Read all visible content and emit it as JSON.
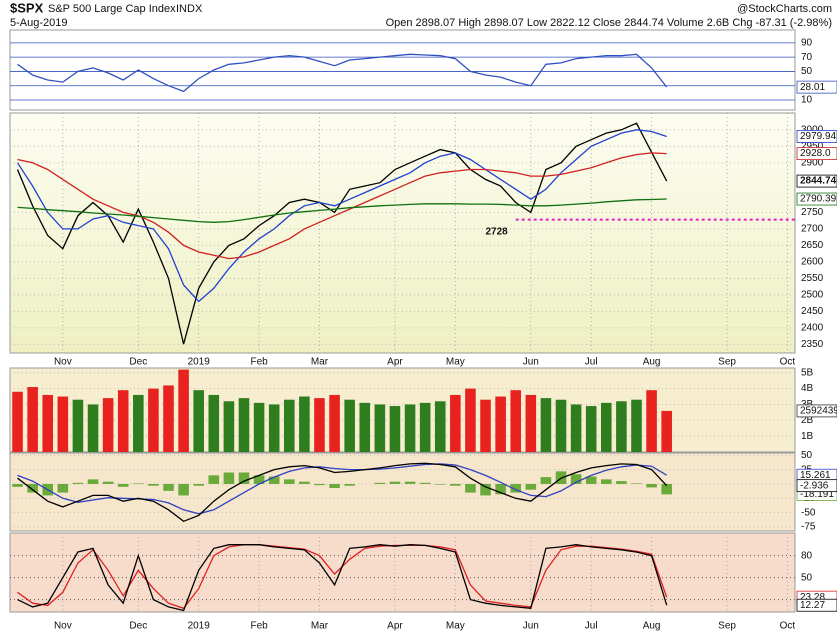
{
  "header": {
    "symbol": "$SPX",
    "name": "S&P 500 Large Cap Index",
    "exchange": "INDX",
    "date": "5-Aug-2019",
    "watermark": "@StockCharts.com",
    "quote": "Open 2898.07  High 2898.07  Low 2822.12  Close 2844.74  Volume 2.6B  Chg -87.31 (-2.98%)"
  },
  "chart_data": [
    {
      "type": "line",
      "categories": [
        null,
        null,
        null,
        null,
        null,
        null,
        null,
        null,
        null,
        null,
        null,
        null,
        null,
        null,
        null,
        null,
        null,
        null,
        null,
        null,
        null,
        null,
        null,
        null,
        null,
        null,
        null,
        null,
        null,
        null,
        null,
        null,
        null,
        null,
        null,
        null,
        null,
        null,
        null,
        null,
        null,
        null,
        null,
        null,
        null,
        null,
        null,
        null,
        null,
        null,
        null,
        null
      ],
      "ylim": [
        -4,
        108
      ],
      "yticks": [
        10,
        30,
        50,
        70,
        90
      ],
      "grid": true,
      "series": [
        {
          "color": "#3050c0",
          "show_last": true,
          "values": [
            60,
            45,
            38,
            35,
            50,
            55,
            48,
            38,
            52,
            40,
            30,
            22,
            40,
            52,
            60,
            62,
            66,
            70,
            72,
            70,
            64,
            58,
            66,
            68,
            70,
            72,
            74,
            73,
            72,
            68,
            50,
            45,
            42,
            35,
            30,
            60,
            62,
            68,
            70,
            72,
            72,
            74,
            55,
            28.01,
            null,
            null,
            null,
            null,
            null,
            null,
            null,
            null
          ]
        }
      ]
    },
    {
      "type": "line",
      "categories": [
        null,
        null,
        null,
        "Nov",
        null,
        null,
        null,
        null,
        "Dec",
        null,
        null,
        null,
        "2019",
        null,
        null,
        null,
        "Feb",
        null,
        null,
        null,
        "Mar",
        null,
        null,
        null,
        null,
        "Apr",
        null,
        null,
        null,
        "May",
        null,
        null,
        null,
        null,
        "Jun",
        null,
        null,
        null,
        "Jul",
        null,
        null,
        null,
        "Aug",
        null,
        null,
        null,
        null,
        "Sep",
        null,
        null,
        null,
        "Oct"
      ],
      "ylim": [
        2324,
        3051
      ],
      "yticks": [
        2350,
        2400,
        2450,
        2500,
        2550,
        2600,
        2650,
        2700,
        2750,
        2900,
        2950,
        3000
      ],
      "grid": true,
      "annotation": {
        "text": "2728",
        "value": 2728,
        "color": "#e020c0"
      },
      "series": [
        {
          "color": "#000000",
          "show_last": true,
          "values": [
            2880,
            2770,
            2680,
            2640,
            2740,
            2780,
            2740,
            2660,
            2760,
            2660,
            2550,
            2351,
            2520,
            2600,
            2650,
            2670,
            2710,
            2740,
            2780,
            2790,
            2780,
            2750,
            2820,
            2830,
            2840,
            2880,
            2900,
            2920,
            2940,
            2930,
            2880,
            2850,
            2830,
            2780,
            2750,
            2880,
            2900,
            2950,
            2970,
            2990,
            3000,
            3020,
            2932,
            2844.74,
            null,
            null,
            null,
            null,
            null,
            null,
            null,
            null
          ]
        },
        {
          "color": "#2040d0",
          "show_last": true,
          "values": [
            2900,
            2830,
            2750,
            2700,
            2700,
            2730,
            2740,
            2720,
            2710,
            2700,
            2640,
            2530,
            2480,
            2520,
            2580,
            2630,
            2670,
            2700,
            2740,
            2770,
            2780,
            2770,
            2790,
            2810,
            2830,
            2850,
            2870,
            2900,
            2920,
            2930,
            2910,
            2880,
            2850,
            2820,
            2790,
            2820,
            2870,
            2910,
            2950,
            2970,
            2990,
            3000,
            2995,
            2979.94,
            null,
            null,
            null,
            null,
            null,
            null,
            null,
            null
          ]
        },
        {
          "color": "#d02020",
          "show_last": true,
          "values": [
            2910,
            2900,
            2880,
            2850,
            2820,
            2790,
            2770,
            2750,
            2740,
            2720,
            2690,
            2650,
            2630,
            2620,
            2610,
            2615,
            2630,
            2650,
            2670,
            2700,
            2720,
            2740,
            2760,
            2780,
            2800,
            2820,
            2840,
            2860,
            2870,
            2875,
            2880,
            2880,
            2875,
            2870,
            2860,
            2860,
            2865,
            2875,
            2885,
            2900,
            2915,
            2925,
            2930,
            2928,
            null,
            null,
            null,
            null,
            null,
            null,
            null,
            null
          ],
          "value_labels": [
            null,
            null,
            null,
            null,
            null,
            null,
            null,
            null,
            null,
            null,
            null,
            null,
            null,
            null,
            null,
            null,
            null,
            null,
            null,
            null,
            null,
            null,
            null,
            null,
            null,
            null,
            null,
            null,
            null,
            null,
            null,
            null,
            null,
            null,
            null,
            null,
            null,
            null,
            null,
            null,
            null,
            null,
            null,
            "2928.0",
            null,
            null,
            null,
            null,
            null,
            null,
            null,
            null
          ]
        },
        {
          "color": "#107010",
          "show_last": true,
          "values": [
            2765,
            2762,
            2758,
            2755,
            2752,
            2748,
            2745,
            2742,
            2738,
            2734,
            2730,
            2726,
            2722,
            2720,
            2722,
            2728,
            2735,
            2742,
            2748,
            2752,
            2756,
            2760,
            2764,
            2767,
            2770,
            2772,
            2774,
            2776,
            2776,
            2776,
            2775,
            2775,
            2774,
            2772,
            2770,
            2770,
            2772,
            2775,
            2778,
            2782,
            2785,
            2788,
            2789,
            2790.39,
            null,
            null,
            null,
            null,
            null,
            null,
            null,
            null
          ]
        }
      ]
    },
    {
      "type": "bar",
      "categories": [
        null,
        null,
        null,
        null,
        null,
        null,
        null,
        null,
        null,
        null,
        null,
        null,
        null,
        null,
        null,
        null,
        null,
        null,
        null,
        null,
        null,
        null,
        null,
        null,
        null,
        null,
        null,
        null,
        null,
        null,
        null,
        null,
        null,
        null,
        null,
        null,
        null,
        null,
        null,
        null,
        null,
        null,
        null,
        null,
        null,
        null,
        null,
        null,
        null,
        null,
        null,
        null
      ],
      "ylim": [
        0,
        5.3
      ],
      "yticks": [
        {
          "value": 1,
          "label": "1B"
        },
        {
          "value": 2,
          "label": "2B"
        },
        {
          "value": 3,
          "label": "3B"
        },
        {
          "value": 4,
          "label": "4B"
        },
        {
          "value": 5,
          "label": "5B"
        }
      ],
      "grid": true,
      "series": [
        {
          "show_last": true,
          "values": [
            3.8,
            4.1,
            3.6,
            3.5,
            3.3,
            3.0,
            3.4,
            3.9,
            3.6,
            4.0,
            4.2,
            5.2,
            3.9,
            3.6,
            3.2,
            3.4,
            3.1,
            3.0,
            3.3,
            3.5,
            3.4,
            3.6,
            3.3,
            3.1,
            3.0,
            2.9,
            3.0,
            3.1,
            3.2,
            3.6,
            4.0,
            3.3,
            3.5,
            3.9,
            3.6,
            3.4,
            3.3,
            3.0,
            2.9,
            3.1,
            3.2,
            3.3,
            3.9,
            2.592439,
            null,
            null,
            null,
            null,
            null,
            null,
            null,
            null
          ],
          "value_labels": [
            null,
            null,
            null,
            null,
            null,
            null,
            null,
            null,
            null,
            null,
            null,
            null,
            null,
            null,
            null,
            null,
            null,
            null,
            null,
            null,
            null,
            null,
            null,
            null,
            null,
            null,
            null,
            null,
            null,
            null,
            null,
            null,
            null,
            null,
            null,
            null,
            null,
            null,
            null,
            null,
            null,
            null,
            null,
            "2592439",
            null,
            null,
            null,
            null,
            null,
            null,
            null,
            null
          ],
          "colors": [
            "#e8231f",
            "#e8231f",
            "#e8231f",
            "#e8231f",
            "#2e7d1f",
            "#2e7d1f",
            "#e8231f",
            "#e8231f",
            "#2e7d1f",
            "#e8231f",
            "#e8231f",
            "#e8231f",
            "#2e7d1f",
            "#2e7d1f",
            "#2e7d1f",
            "#2e7d1f",
            "#2e7d1f",
            "#2e7d1f",
            "#2e7d1f",
            "#2e7d1f",
            "#e8231f",
            "#e8231f",
            "#2e7d1f",
            "#2e7d1f",
            "#2e7d1f",
            "#2e7d1f",
            "#2e7d1f",
            "#2e7d1f",
            "#2e7d1f",
            "#e8231f",
            "#e8231f",
            "#e8231f",
            "#e8231f",
            "#e8231f",
            "#e8231f",
            "#2e7d1f",
            "#2e7d1f",
            "#2e7d1f",
            "#2e7d1f",
            "#2e7d1f",
            "#2e7d1f",
            "#2e7d1f",
            "#e8231f",
            "#e8231f",
            null,
            null,
            null,
            null,
            null,
            null,
            null,
            null
          ]
        }
      ]
    },
    {
      "type": "line",
      "categories": [
        null,
        null,
        null,
        null,
        null,
        null,
        null,
        null,
        null,
        null,
        null,
        null,
        null,
        null,
        null,
        null,
        null,
        null,
        null,
        null,
        null,
        null,
        null,
        null,
        null,
        null,
        null,
        null,
        null,
        null,
        null,
        null,
        null,
        null,
        null,
        null,
        null,
        null,
        null,
        null,
        null,
        null,
        null,
        null,
        null,
        null,
        null,
        null,
        null,
        null,
        null,
        null
      ],
      "ylim": [
        -82,
        54
      ],
      "yticks": [
        -75,
        -50,
        -25,
        0,
        25,
        50
      ],
      "grid": true,
      "series": [
        {
          "type": "bar",
          "color": "#6aaa3a",
          "show_last": true,
          "values": [
            -5,
            -15,
            -20,
            -15,
            2,
            8,
            4,
            -5,
            1,
            -3,
            -12,
            -20,
            -3,
            15,
            20,
            20,
            15,
            13,
            8,
            4,
            -2,
            -7,
            -3,
            0,
            2,
            4,
            4,
            2,
            -1,
            -3,
            -15,
            -20,
            -18,
            -15,
            -10,
            12,
            22,
            17,
            13,
            8,
            5,
            1,
            -6,
            -18.191,
            null,
            null,
            null,
            null,
            null,
            null,
            null,
            null
          ]
        },
        {
          "color": "#3040c0",
          "show_last": true,
          "values": [
            15,
            5,
            -10,
            -25,
            -32,
            -28,
            -24,
            -25,
            -26,
            -27,
            -33,
            -45,
            -52,
            -45,
            -30,
            -15,
            0,
            12,
            22,
            28,
            30,
            27,
            25,
            25,
            26,
            28,
            31,
            34,
            35,
            33,
            25,
            15,
            3,
            -10,
            -20,
            -22,
            -12,
            3,
            15,
            24,
            30,
            33,
            31,
            15.261,
            null,
            null,
            null,
            null,
            null,
            null,
            null,
            null
          ]
        },
        {
          "color": "#000000",
          "show_last": true,
          "values": [
            10,
            -10,
            -30,
            -40,
            -30,
            -20,
            -20,
            -30,
            -25,
            -30,
            -45,
            -65,
            -55,
            -30,
            -10,
            5,
            15,
            25,
            30,
            32,
            28,
            20,
            22,
            25,
            28,
            32,
            35,
            36,
            34,
            30,
            10,
            -5,
            -15,
            -25,
            -30,
            -10,
            10,
            20,
            28,
            32,
            35,
            34,
            25,
            -2.936,
            null,
            null,
            null,
            null,
            null,
            null,
            null,
            null
          ]
        }
      ]
    },
    {
      "type": "line",
      "categories": [
        null,
        null,
        null,
        "Nov",
        null,
        null,
        null,
        null,
        "Dec",
        null,
        null,
        null,
        "2019",
        null,
        null,
        null,
        "Feb",
        null,
        null,
        null,
        "Mar",
        null,
        null,
        null,
        null,
        "Apr",
        null,
        null,
        null,
        "May",
        null,
        null,
        null,
        null,
        "Jun",
        null,
        null,
        null,
        "Jul",
        null,
        null,
        null,
        "Aug",
        null,
        null,
        null,
        null,
        "Sep",
        null,
        null,
        null,
        "Oct"
      ],
      "ylim": [
        3,
        111
      ],
      "yticks": [
        20,
        50,
        80
      ],
      "grid": true,
      "series": [
        {
          "color": "#e02020",
          "show_last": true,
          "values": [
            30,
            15,
            12,
            30,
            70,
            88,
            60,
            25,
            60,
            35,
            15,
            8,
            35,
            80,
            92,
            95,
            95,
            93,
            91,
            89,
            80,
            55,
            75,
            90,
            93,
            94,
            94,
            94,
            92,
            88,
            40,
            18,
            15,
            12,
            10,
            60,
            88,
            93,
            93,
            91,
            89,
            86,
            82,
            23.28,
            null,
            null,
            null,
            null,
            null,
            null,
            null,
            null
          ]
        },
        {
          "color": "#000000",
          "show_last": true,
          "values": [
            20,
            10,
            15,
            50,
            85,
            90,
            40,
            15,
            80,
            20,
            10,
            5,
            60,
            90,
            95,
            95,
            95,
            92,
            90,
            88,
            70,
            40,
            90,
            92,
            95,
            93,
            95,
            94,
            90,
            85,
            20,
            15,
            12,
            10,
            8,
            90,
            92,
            95,
            92,
            90,
            88,
            85,
            80,
            12.27,
            null,
            null,
            null,
            null,
            null,
            null,
            null,
            null
          ]
        }
      ]
    }
  ]
}
